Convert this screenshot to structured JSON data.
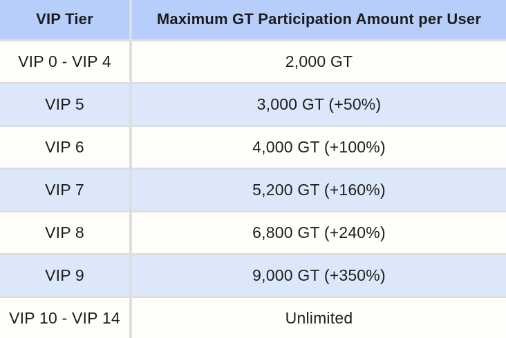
{
  "table": {
    "header": {
      "tier_label": "VIP Tier",
      "amount_label": "Maximum GT Participation Amount per User"
    },
    "rows": [
      {
        "tier": "VIP 0 - VIP 4",
        "amount": "2,000 GT"
      },
      {
        "tier": "VIP 5",
        "amount": "3,000 GT (+50%)"
      },
      {
        "tier": "VIP 6",
        "amount": "4,000 GT (+100%)"
      },
      {
        "tier": "VIP 7",
        "amount": "5,200 GT (+160%)"
      },
      {
        "tier": "VIP 8",
        "amount": "6,800 GT (+240%)"
      },
      {
        "tier": "VIP 9",
        "amount": "9,000 GT (+350%)"
      },
      {
        "tier": "VIP 10 - VIP 14",
        "amount": "Unlimited"
      }
    ],
    "colors": {
      "header_bg": "#b7cefa",
      "row_alt_bg": "#dde7fa",
      "row_bg": "#fffefa",
      "border": "#dcdee2",
      "text": "#1c1c1c"
    }
  },
  "chart_data": {
    "type": "table",
    "title": "",
    "columns": [
      "VIP Tier",
      "Maximum GT Participation Amount per User"
    ],
    "rows": [
      [
        "VIP 0 - VIP 4",
        "2,000 GT"
      ],
      [
        "VIP 5",
        "3,000 GT (+50%)"
      ],
      [
        "VIP 6",
        "4,000 GT (+100%)"
      ],
      [
        "VIP 7",
        "5,200 GT (+160%)"
      ],
      [
        "VIP 8",
        "6,800 GT (+240%)"
      ],
      [
        "VIP 9",
        "9,000 GT (+350%)"
      ],
      [
        "VIP 10 - VIP 14",
        "Unlimited"
      ]
    ]
  }
}
